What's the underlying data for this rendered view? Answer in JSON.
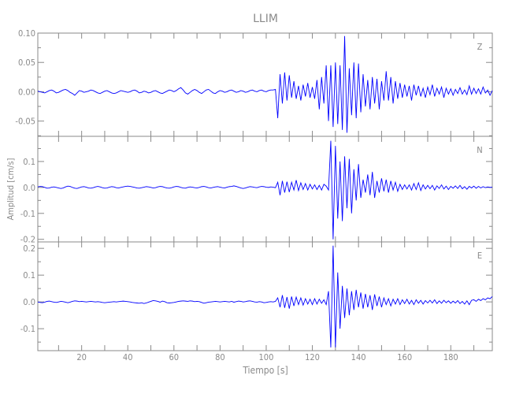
{
  "chart_data": {
    "type": "line",
    "title": "LLIM",
    "xlabel": "Tiempo [s]",
    "ylabel": "Amplitud [cm/s]",
    "xlim": [
      1,
      198
    ],
    "x_ticks": [
      20,
      40,
      60,
      80,
      100,
      120,
      140,
      160,
      180
    ],
    "x_tick_labels": [
      "20",
      "40",
      "60",
      "80",
      "100",
      "120",
      "140",
      "160",
      "180"
    ],
    "x_minor_step": 10,
    "grid": false,
    "line_color": "#0000ff",
    "axis_color": "#8a8a8a",
    "x_start": 1,
    "x_step": 1,
    "panels": [
      {
        "component": "Z",
        "ylim": [
          -0.076,
          0.1
        ],
        "y_ticks": [
          -0.05,
          0.0,
          0.05,
          0.1
        ],
        "y_tick_labels": [
          "-0.05",
          "0.00",
          "0.05",
          "0.10"
        ],
        "y_minor_step": 0.025,
        "values": [
          0.001,
          0.0,
          -0.001,
          -0.002,
          0.0,
          0.002,
          0.003,
          0.001,
          -0.002,
          -0.001,
          0.001,
          0.003,
          0.004,
          0.002,
          -0.001,
          -0.003,
          -0.006,
          -0.002,
          0.002,
          0.001,
          -0.001,
          0.0,
          0.001,
          0.003,
          0.002,
          0.0,
          -0.002,
          -0.003,
          -0.001,
          0.001,
          0.002,
          0.0,
          -0.002,
          -0.003,
          -0.002,
          0.0,
          0.002,
          0.001,
          0.0,
          -0.001,
          0.0,
          0.002,
          0.003,
          0.001,
          -0.002,
          -0.001,
          0.001,
          0.0,
          -0.002,
          -0.001,
          0.001,
          0.002,
          0.0,
          -0.002,
          -0.003,
          -0.001,
          0.001,
          0.003,
          0.002,
          0.0,
          0.002,
          0.005,
          0.007,
          0.003,
          -0.002,
          -0.004,
          -0.001,
          0.002,
          0.004,
          0.002,
          -0.001,
          -0.003,
          0.0,
          0.003,
          0.004,
          0.001,
          -0.002,
          -0.003,
          0.0,
          0.002,
          0.001,
          -0.001,
          0.0,
          0.002,
          0.003,
          0.001,
          -0.001,
          0.0,
          0.002,
          0.001,
          -0.001,
          0.0,
          0.002,
          0.003,
          0.001,
          0.0,
          0.002,
          0.003,
          0.001,
          0.0,
          0.002,
          0.003,
          0.003,
          0.004,
          -0.045,
          0.03,
          -0.02,
          0.033,
          -0.015,
          0.028,
          -0.01,
          0.018,
          -0.012,
          0.01,
          -0.015,
          0.012,
          -0.008,
          0.015,
          -0.01,
          0.008,
          -0.012,
          0.02,
          -0.03,
          0.025,
          -0.02,
          0.045,
          -0.05,
          0.045,
          -0.06,
          0.05,
          -0.055,
          0.045,
          -0.065,
          0.095,
          -0.07,
          0.04,
          -0.04,
          0.05,
          -0.045,
          0.048,
          -0.035,
          0.03,
          -0.025,
          0.02,
          -0.03,
          0.025,
          -0.02,
          0.022,
          -0.03,
          0.018,
          -0.015,
          0.035,
          -0.015,
          0.025,
          -0.02,
          0.018,
          -0.012,
          0.015,
          -0.01,
          0.012,
          -0.008,
          0.01,
          -0.015,
          0.012,
          -0.006,
          0.01,
          -0.008,
          0.006,
          -0.01,
          0.008,
          -0.005,
          0.012,
          -0.008,
          0.006,
          -0.004,
          0.008,
          -0.01,
          0.006,
          -0.004,
          0.005,
          -0.006,
          0.004,
          -0.003,
          0.007,
          -0.004,
          0.003,
          -0.005,
          0.01,
          -0.004,
          0.006,
          -0.003,
          0.005,
          -0.004,
          0.008,
          -0.002,
          0.003,
          -0.006,
          0.002
        ]
      },
      {
        "component": "N",
        "ylim": [
          -0.21,
          0.197
        ],
        "y_ticks": [
          -0.2,
          -0.1,
          0.0,
          0.1
        ],
        "y_tick_labels": [
          "-0.2",
          "-0.1",
          "0.0",
          "0.1"
        ],
        "y_minor_step": 0.05,
        "values": [
          0.002,
          0.004,
          0.003,
          0.0,
          -0.003,
          -0.002,
          0.001,
          0.002,
          0.0,
          -0.002,
          -0.004,
          -0.002,
          0.002,
          0.005,
          0.004,
          0.0,
          -0.003,
          -0.004,
          -0.001,
          0.002,
          0.003,
          0.001,
          -0.002,
          -0.003,
          -0.001,
          0.002,
          0.004,
          0.002,
          -0.001,
          -0.003,
          -0.002,
          0.001,
          0.003,
          0.002,
          -0.001,
          -0.002,
          0.0,
          0.002,
          0.004,
          0.005,
          0.004,
          0.002,
          0.0,
          -0.002,
          -0.003,
          -0.001,
          0.001,
          0.003,
          0.002,
          0.0,
          -0.002,
          -0.001,
          0.002,
          0.004,
          0.003,
          0.0,
          -0.002,
          -0.003,
          -0.001,
          0.002,
          0.004,
          0.003,
          0.0,
          -0.002,
          -0.003,
          0.0,
          0.002,
          0.001,
          -0.001,
          -0.002,
          0.0,
          0.003,
          0.004,
          0.002,
          -0.001,
          -0.002,
          0.0,
          0.002,
          0.003,
          0.001,
          -0.001,
          -0.002,
          0.001,
          0.003,
          0.004,
          0.006,
          0.004,
          0.001,
          -0.002,
          -0.004,
          -0.002,
          0.001,
          0.003,
          0.002,
          0.0,
          -0.001,
          0.002,
          0.004,
          0.003,
          0.001,
          0.0,
          0.002,
          0.001,
          -0.001,
          0.02,
          -0.03,
          0.025,
          -0.02,
          0.022,
          -0.018,
          0.02,
          -0.01,
          0.028,
          -0.012,
          0.018,
          -0.008,
          0.015,
          -0.01,
          0.012,
          -0.006,
          0.01,
          -0.008,
          0.008,
          -0.01,
          0.012,
          0.005,
          -0.01,
          0.18,
          -0.2,
          0.16,
          -0.12,
          0.1,
          -0.13,
          0.12,
          -0.08,
          0.11,
          -0.1,
          0.07,
          -0.05,
          0.09,
          -0.04,
          0.03,
          -0.02,
          0.05,
          -0.03,
          0.06,
          -0.04,
          0.025,
          -0.02,
          0.035,
          -0.015,
          0.03,
          -0.02,
          0.025,
          -0.01,
          0.02,
          -0.015,
          0.012,
          -0.008,
          0.01,
          -0.006,
          0.01,
          -0.01,
          0.015,
          -0.008,
          0.018,
          -0.012,
          0.01,
          -0.006,
          0.008,
          -0.005,
          0.008,
          -0.01,
          0.006,
          -0.004,
          0.01,
          -0.006,
          0.005,
          -0.008,
          0.004,
          -0.003,
          0.006,
          -0.004,
          0.008,
          -0.005,
          0.003,
          -0.007,
          0.004,
          -0.002,
          0.005,
          -0.003,
          0.004,
          -0.002,
          0.003,
          -0.001,
          0.002,
          0.0,
          0.001
        ]
      },
      {
        "component": "E",
        "ylim": [
          -0.182,
          0.224
        ],
        "y_ticks": [
          -0.1,
          0.0,
          0.1,
          0.2
        ],
        "y_tick_labels": [
          "-0.1",
          "0.0",
          "0.1",
          "0.2"
        ],
        "y_minor_step": 0.05,
        "values": [
          0.0,
          -0.002,
          -0.003,
          -0.001,
          0.002,
          0.003,
          0.001,
          -0.001,
          -0.002,
          0.0,
          0.002,
          0.001,
          -0.001,
          -0.003,
          -0.001,
          0.002,
          0.004,
          0.003,
          0.001,
          0.002,
          0.001,
          0.0,
          0.001,
          0.002,
          0.001,
          0.0,
          0.001,
          0.0,
          -0.002,
          -0.003,
          -0.002,
          -0.001,
          0.0,
          0.001,
          0.0,
          0.001,
          0.002,
          0.003,
          0.002,
          0.001,
          0.0,
          -0.002,
          -0.003,
          -0.004,
          -0.005,
          -0.003,
          -0.006,
          -0.004,
          -0.001,
          0.002,
          0.005,
          0.004,
          0.002,
          -0.001,
          0.003,
          0.001,
          -0.003,
          -0.004,
          -0.003,
          -0.002,
          0.0,
          0.002,
          0.003,
          0.004,
          0.003,
          0.002,
          0.004,
          0.003,
          0.001,
          0.002,
          0.001,
          -0.002,
          -0.005,
          -0.003,
          -0.001,
          0.0,
          0.001,
          0.002,
          0.001,
          0.0,
          0.001,
          0.002,
          0.001,
          0.0,
          0.002,
          -0.001,
          0.001,
          0.003,
          0.002,
          0.0,
          0.001,
          0.003,
          0.004,
          0.002,
          0.0,
          -0.001,
          0.001,
          0.0,
          -0.003,
          -0.002,
          0.0,
          0.001,
          0.0,
          0.002,
          0.015,
          -0.02,
          0.025,
          -0.022,
          0.018,
          -0.025,
          0.02,
          -0.015,
          0.018,
          -0.01,
          0.015,
          -0.012,
          0.012,
          -0.008,
          0.01,
          -0.01,
          0.012,
          -0.008,
          0.01,
          -0.005,
          0.008,
          -0.01,
          0.04,
          -0.17,
          0.21,
          -0.17,
          0.11,
          -0.1,
          0.06,
          -0.06,
          0.05,
          -0.05,
          0.04,
          -0.03,
          0.045,
          -0.02,
          0.035,
          -0.025,
          0.03,
          -0.02,
          0.025,
          -0.03,
          0.028,
          -0.015,
          0.02,
          -0.02,
          0.015,
          -0.01,
          0.012,
          -0.015,
          0.01,
          -0.008,
          0.012,
          -0.01,
          0.008,
          -0.006,
          0.01,
          -0.008,
          0.006,
          -0.01,
          0.008,
          -0.005,
          0.006,
          -0.008,
          0.005,
          -0.004,
          0.006,
          -0.004,
          0.008,
          -0.006,
          0.004,
          -0.005,
          0.006,
          -0.003,
          0.004,
          -0.005,
          0.003,
          -0.004,
          0.005,
          -0.006,
          0.002,
          -0.008,
          0.004,
          -0.01,
          0.006,
          0.008,
          0.002,
          0.01,
          0.005,
          0.012,
          0.008,
          0.015,
          0.012,
          0.02
        ]
      }
    ]
  }
}
